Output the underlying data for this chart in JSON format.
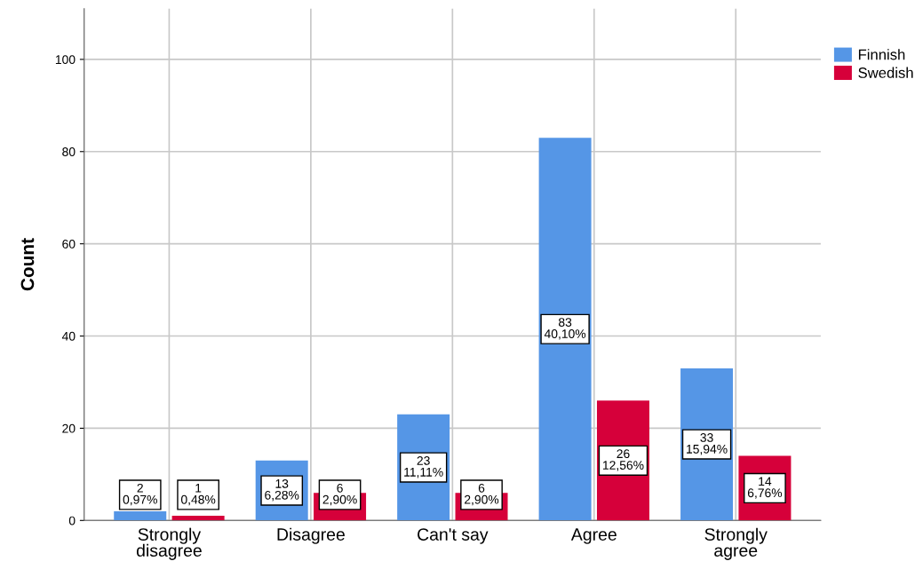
{
  "chart_data": {
    "type": "bar",
    "ylabel": "Count",
    "categories": [
      "Strongly\ndisagree",
      "Disagree",
      "Can't say",
      "Agree",
      "Strongly\nagree"
    ],
    "series": [
      {
        "name": "Finnish",
        "color": "#5596e6",
        "values": [
          2,
          13,
          23,
          83,
          33
        ],
        "value_labels": [
          "2\n0,97%",
          "13\n6,28%",
          "23\n11,11%",
          "83\n40,10%",
          "33\n15,94%"
        ]
      },
      {
        "name": "Swedish",
        "color": "#d6003a",
        "values": [
          1,
          6,
          6,
          26,
          14
        ],
        "value_labels": [
          "1\n0,48%",
          "6\n2,90%",
          "6\n2,90%",
          "26\n12,56%",
          "14\n6,76%"
        ]
      }
    ],
    "ylim": [
      0,
      111
    ],
    "yticks": [
      0,
      20,
      40,
      60,
      80,
      100
    ],
    "grid": true,
    "legend": "top right"
  }
}
